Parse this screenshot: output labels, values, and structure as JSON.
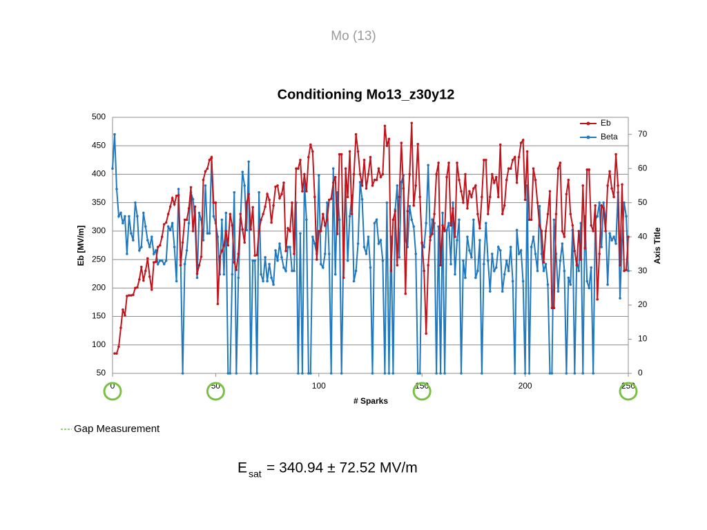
{
  "page_title": "Mo (13)",
  "chart_data": {
    "type": "line",
    "title": "Conditioning Mo13_z30y12",
    "x_label": "# Sparks",
    "y_label": "Eb [MV/m]",
    "y2_label": "Axis Title",
    "xlim": [
      0,
      250
    ],
    "xticks": [
      0,
      50,
      100,
      150,
      200,
      250
    ],
    "ylim": [
      50,
      500
    ],
    "yticks": [
      50,
      100,
      150,
      200,
      250,
      300,
      350,
      400,
      450,
      500
    ],
    "y2lim": [
      0,
      75
    ],
    "y2ticks": [
      0,
      10,
      20,
      30,
      40,
      50,
      60,
      70
    ],
    "grid": true,
    "legend": "top-right",
    "x": [
      0,
      1,
      2,
      3,
      4,
      5,
      6,
      7,
      8,
      9,
      10,
      11,
      12,
      13,
      14,
      15,
      16,
      17,
      18,
      19,
      20,
      21,
      22,
      23,
      24,
      25,
      26,
      27,
      28,
      29,
      30,
      31,
      32,
      33,
      34,
      35,
      36,
      37,
      38,
      39,
      40,
      41,
      42,
      43,
      44,
      45,
      46,
      47,
      48,
      49,
      50,
      51,
      52,
      53,
      54,
      55,
      56,
      57,
      58,
      59,
      60,
      61,
      62,
      63,
      64,
      65,
      66,
      67,
      68,
      69,
      70,
      71,
      72,
      73,
      74,
      75,
      76,
      77,
      78,
      79,
      80,
      81,
      82,
      83,
      84,
      85,
      86,
      87,
      88,
      89,
      90,
      91,
      92,
      93,
      94,
      95,
      96,
      97,
      98,
      99,
      100,
      101,
      102,
      103,
      104,
      105,
      106,
      107,
      108,
      109,
      110,
      111,
      112,
      113,
      114,
      115,
      116,
      117,
      118,
      119,
      120,
      121,
      122,
      123,
      124,
      125,
      126,
      127,
      128,
      129,
      130,
      131,
      132,
      133,
      134,
      135,
      136,
      137,
      138,
      139,
      140,
      141,
      142,
      143,
      144,
      145,
      146,
      147,
      148,
      149,
      150,
      151,
      152,
      153,
      154,
      155,
      156,
      157,
      158,
      159,
      160,
      161,
      162,
      163,
      164,
      165,
      166,
      167,
      168,
      169,
      170,
      171,
      172,
      173,
      174,
      175,
      176,
      177,
      178,
      179,
      180,
      181,
      182,
      183,
      184,
      185,
      186,
      187,
      188,
      189,
      190,
      191,
      192,
      193,
      194,
      195,
      196,
      197,
      198,
      199,
      200,
      201,
      202,
      203,
      204,
      205,
      206,
      207,
      208,
      209,
      210,
      211,
      212,
      213,
      214,
      215,
      216,
      217,
      218,
      219,
      220,
      221,
      222,
      223,
      224,
      225,
      226,
      227,
      228,
      229,
      230,
      231,
      232,
      233,
      234,
      235,
      236,
      237,
      238,
      239,
      240,
      241,
      242,
      243,
      244,
      245,
      246,
      247,
      248,
      249,
      250
    ],
    "series": [
      {
        "name": "Eb",
        "color": "#c0141c",
        "values": [
          null,
          85,
          85,
          97,
          130,
          162,
          152,
          186,
          187,
          187,
          188,
          200,
          201,
          215,
          237,
          213,
          230,
          252,
          220,
          197,
          245,
          246,
          272,
          275,
          290,
          312,
          315,
          330,
          343,
          358,
          347,
          362,
          363,
          240,
          280,
          320,
          320,
          340,
          377,
          300,
          343,
          225,
          240,
          255,
          390,
          405,
          410,
          425,
          430,
          350,
          350,
          172,
          255,
          265,
          275,
          300,
          275,
          330,
          310,
          245,
          232,
          260,
          330,
          303,
          280,
          350,
          365,
          303,
          342,
          257,
          258,
          300,
          320,
          330,
          343,
          365,
          355,
          315,
          345,
          378,
          380,
          358,
          365,
          385,
          265,
          305,
          300,
          350,
          260,
          410,
          410,
          425,
          370,
          400,
          370,
          430,
          452,
          440,
          360,
          250,
          300,
          300,
          330,
          310,
          320,
          355,
          357,
          385,
          395,
          295,
          435,
          435,
          218,
          410,
          360,
          440,
          330,
          400,
          470,
          440,
          400,
          380,
          425,
          375,
          400,
          430,
          380,
          390,
          390,
          410,
          395,
          400,
          485,
          450,
          462,
          230,
          320,
          335,
          240,
          360,
          455,
          375,
          190,
          335,
          400,
          490,
          345,
          380,
          453,
          360,
          280,
          230,
          120,
          240,
          290,
          295,
          330,
          400,
          420,
          240,
          310,
          300,
          395,
          420,
          310,
          340,
          290,
          420,
          390,
          370,
          350,
          400,
          340,
          370,
          360,
          375,
          380,
          330,
          305,
          360,
          425,
          425,
          330,
          360,
          400,
          385,
          395,
          360,
          452,
          330,
          345,
          390,
          410,
          410,
          425,
          430,
          385,
          430,
          455,
          460,
          355,
          440,
          320,
          320,
          410,
          390,
          350,
          310,
          300,
          245,
          300,
          330,
          370,
          165,
          165,
          330,
          410,
          420,
          300,
          290,
          365,
          390,
          330,
          310,
          265,
          240,
          300,
          250,
          380,
          270,
          408,
          408,
          310,
          300,
          345,
          180,
          260,
          345,
          340,
          300,
          380,
          405,
          375,
          360,
          435,
          380,
          240,
          382,
          230,
          232,
          290
        ]
      },
      {
        "name": "Beta",
        "color": "#1f78bd",
        "axis": "y2",
        "values": [
          60,
          70,
          54,
          46,
          47,
          44,
          46,
          35,
          46,
          41,
          39,
          50,
          46,
          36,
          37,
          47,
          43,
          39,
          37,
          40,
          35,
          36,
          32,
          33,
          33,
          32,
          33,
          43,
          42,
          44,
          37,
          27,
          54,
          34,
          0,
          32,
          36,
          44,
          53,
          51,
          45,
          28,
          47,
          45,
          39,
          55,
          41,
          41,
          63,
          46,
          44,
          40,
          29,
          45,
          29,
          47,
          0,
          0,
          29,
          53,
          0,
          28,
          45,
          59,
          55,
          42,
          62,
          0,
          33,
          33,
          0,
          53,
          29,
          27,
          34,
          27,
          32,
          28,
          26,
          36,
          33,
          38,
          34,
          31,
          30,
          37,
          37,
          30,
          30,
          50,
          0,
          41,
          0,
          56,
          45,
          0,
          0,
          40,
          38,
          35,
          58,
          32,
          31,
          35,
          50,
          35,
          0,
          60,
          29,
          53,
          45,
          0,
          38,
          55,
          33,
          46,
          52,
          27,
          30,
          38,
          56,
          51,
          37,
          35,
          40,
          31,
          0,
          44,
          45,
          38,
          39,
          33,
          0,
          50,
          0,
          40,
          0,
          48,
          55,
          34,
          56,
          58,
          39,
          37,
          49,
          45,
          43,
          35,
          0,
          0,
          38,
          37,
          44,
          61,
          39,
          45,
          44,
          0,
          43,
          0,
          47,
          0,
          42,
          44,
          32,
          50,
          29,
          39,
          45,
          0,
          33,
          28,
          40,
          36,
          34,
          45,
          28,
          30,
          39,
          0,
          32,
          44,
          33,
          24,
          35,
          30,
          31,
          37,
          36,
          24,
          29,
          33,
          30,
          37,
          27,
          0,
          42,
          35,
          36,
          27,
          0,
          55,
          0,
          37,
          40,
          35,
          30,
          49,
          35,
          30,
          32,
          26,
          0,
          0,
          45,
          35,
          24,
          33,
          38,
          30,
          0,
          28,
          26,
          42,
          0,
          33,
          30,
          44,
          0,
          46,
          27,
          25,
          31,
          0,
          45,
          46,
          50,
          37,
          50,
          45,
          26,
          41,
          39,
          40,
          38,
          53,
          22,
          39,
          50,
          46,
          30
        ]
      }
    ],
    "gap_measurements": {
      "name": "Gap Measurement",
      "color": "#7ac143",
      "x": [
        0,
        50,
        150,
        250
      ]
    }
  },
  "formula": {
    "symbol": "E",
    "subscript": "sat",
    "text": "= 340.94 ± 72.52 MV/m"
  }
}
